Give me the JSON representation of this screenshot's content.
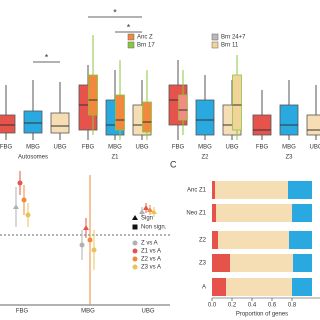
{
  "chart_data": [
    {
      "type": "box",
      "ylim": [
        0,
        130
      ],
      "legend": [
        {
          "name": "Anc Z",
          "color": "#f0883e"
        },
        {
          "name": "Brn 17",
          "color": "#8cc63f"
        },
        {
          "name": "Brn 24+7",
          "color": "#b9b9b9"
        },
        {
          "name": "Brn 11",
          "color": "#f2d39a"
        }
      ],
      "annotations": [
        "*",
        "*",
        "*"
      ],
      "groups": [
        {
          "name": "Autosomes",
          "categories": [
            "FBG",
            "MBG",
            "UBG"
          ],
          "boxes": [
            {
              "color": "#e5534b",
              "min": 0,
              "q1": 7,
              "median": 15,
              "q3": 25,
              "max": 55
            },
            {
              "color": "#2aa8e0",
              "min": 0,
              "q1": 7,
              "median": 17,
              "q3": 29,
              "max": 60
            },
            {
              "color": "#f5deb3",
              "min": 0,
              "q1": 7,
              "median": 14,
              "q3": 27,
              "max": 58
            }
          ],
          "inner": [
            null,
            null,
            null
          ]
        },
        {
          "name": "Z1",
          "categories": [
            "FBG",
            "MBG",
            "UBG"
          ],
          "boxes": [
            {
              "color": "#e5534b",
              "min": 0,
              "q1": 10,
              "median": 35,
              "q3": 55,
              "max": 75
            },
            {
              "color": "#2aa8e0",
              "min": 0,
              "q1": 5,
              "median": 15,
              "q3": 40,
              "max": 70
            },
            {
              "color": "#f5deb3",
              "min": 0,
              "q1": 5,
              "median": 15,
              "q3": 35,
              "max": 60
            }
          ],
          "inner": [
            {
              "color": "#f0883e",
              "min": 5,
              "q1": 25,
              "median": 40,
              "q3": 65,
              "max": 105
            },
            {
              "color": "#f0883e",
              "min": 0,
              "q1": 10,
              "median": 20,
              "q3": 45,
              "max": 80
            },
            {
              "color": "#f0883e",
              "min": 0,
              "q1": 8,
              "median": 18,
              "q3": 38,
              "max": 70
            }
          ]
        },
        {
          "name": "Z2",
          "categories": [
            "FBG",
            "MBG",
            "UBG"
          ],
          "boxes": [
            {
              "color": "#e5534b",
              "min": 0,
              "q1": 15,
              "median": 40,
              "q3": 55,
              "max": 80
            },
            {
              "color": "#2aa8e0",
              "min": 0,
              "q1": 5,
              "median": 20,
              "q3": 40,
              "max": 65
            },
            {
              "color": "#f5deb3",
              "min": 0,
              "q1": 5,
              "median": 15,
              "q3": 35,
              "max": 60
            }
          ],
          "inner": [
            {
              "color": "#f28b82",
              "min": 5,
              "q1": 20,
              "median": 30,
              "q3": 45,
              "max": 70
            },
            null,
            {
              "color": "#f2d39a",
              "min": 0,
              "q1": 10,
              "median": 35,
              "q3": 65,
              "max": 85
            }
          ]
        },
        {
          "name": "Z3",
          "categories": [
            "FBG",
            "MBG",
            "UBG"
          ],
          "boxes": [
            {
              "color": "#e5534b",
              "min": 0,
              "q1": 5,
              "median": 10,
              "q3": 25,
              "max": 50
            },
            {
              "color": "#2aa8e0",
              "min": 0,
              "q1": 5,
              "median": 15,
              "q3": 35,
              "max": 60
            },
            {
              "color": "#f5deb3",
              "min": 0,
              "q1": 5,
              "median": 10,
              "q3": 25,
              "max": 55
            }
          ],
          "inner": [
            null,
            null,
            null
          ]
        }
      ]
    },
    {
      "type": "dot",
      "categories": [
        "FBG",
        "MBG",
        "UBG"
      ],
      "ylim": [
        -0.7,
        0.7
      ],
      "hline": 0,
      "marker_legend": [
        "Sign",
        "Non sign."
      ],
      "series": [
        {
          "name": "Z vs A",
          "color": "#b0b0b0",
          "values": [
            0.28,
            -0.1,
            0.23
          ],
          "errors": [
            0.2,
            0.15,
            0.05
          ],
          "significant": [
            true,
            false,
            true
          ]
        },
        {
          "name": "Z1 vs A",
          "color": "#e5534b",
          "values": [
            0.52,
            0.07,
            0.27
          ],
          "errors": [
            0.12,
            0.1,
            0.05
          ],
          "significant": [
            false,
            true,
            true
          ]
        },
        {
          "name": "Z2 vs A",
          "color": "#f0883e",
          "values": [
            0.35,
            -0.05,
            0.25
          ],
          "errors": [
            0.15,
            0.65,
            0.05
          ],
          "significant": [
            false,
            false,
            true
          ]
        },
        {
          "name": "Z3 vs A",
          "color": "#e8c35a",
          "values": [
            0.2,
            -0.15,
            0.23
          ],
          "errors": [
            0.12,
            0.2,
            0.05
          ],
          "significant": [
            false,
            false,
            true
          ]
        }
      ]
    },
    {
      "type": "stacked_barh",
      "panel_label": "C",
      "categories": [
        "Anc Z1",
        "Neo Z1",
        "Z2",
        "Z3",
        "A"
      ],
      "xlabel": "Proportion of genes",
      "xlim": [
        0,
        1
      ],
      "xticks": [
        {
          "value": 0,
          "label": "0.0"
        },
        0.2,
        0.4,
        0.6,
        0.8
      ],
      "series": [
        {
          "color": "#e5534b",
          "values": [
            0.03,
            0.04,
            0.06,
            0.18,
            0.14
          ]
        },
        {
          "color": "#f5deb3",
          "values": [
            0.73,
            0.76,
            0.71,
            0.63,
            0.66
          ]
        },
        {
          "color": "#2aa8e0",
          "values": [
            0.24,
            0.2,
            0.23,
            0.19,
            0.2
          ]
        }
      ]
    }
  ]
}
